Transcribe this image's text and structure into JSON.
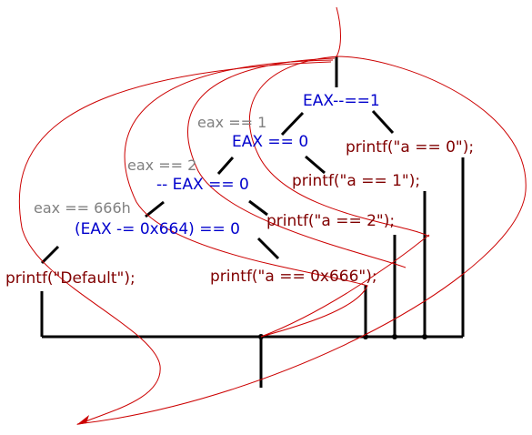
{
  "colors": {
    "condition": "#0000cc",
    "statement": "#800000",
    "case_value": "#808080",
    "connector": "#000000",
    "flow_curve": "#cc0000"
  },
  "conditions": {
    "c1": "EAX--==1",
    "c2": "EAX == 0",
    "c3": "-- EAX == 0",
    "c4": "(EAX -= 0x664) == 0"
  },
  "case_values": {
    "v1": "eax == 1",
    "v2": "eax == 2",
    "v3": "eax == 666h"
  },
  "statements": {
    "s0": "printf(\"a == 0\");",
    "s1": "printf(\"a == 1\");",
    "s2": "printf(\"a == 2\");",
    "s666": "printf(\"a == 0x666\");",
    "sdef": "printf(\"Default\");"
  }
}
